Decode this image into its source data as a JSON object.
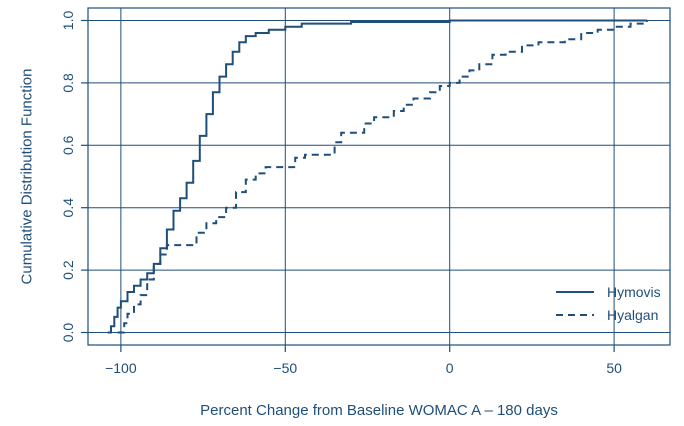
{
  "chart_data": {
    "type": "line",
    "title": "",
    "xlabel": "Percent Change from Baseline WOMAC A – 180 days",
    "ylabel": "Cumulative Distribution Function",
    "xlim": [
      -110,
      67
    ],
    "ylim": [
      -0.04,
      1.04
    ],
    "x_ticks": [
      -100,
      -50,
      0,
      50
    ],
    "x_tick_labels": [
      "−100",
      "−50",
      "0",
      "50"
    ],
    "y_ticks": [
      0.0,
      0.2,
      0.4,
      0.6,
      0.8,
      1.0
    ],
    "y_tick_labels": [
      "0.0",
      "0.2",
      "0.4",
      "0.6",
      "0.8",
      "1.0"
    ],
    "grid": true,
    "legend_position": "bottom-right",
    "colors": {
      "line": "#1f4e79",
      "grid": "#1f4e79",
      "background": "#ffffff"
    },
    "series": [
      {
        "name": "Hymovis",
        "style": "solid",
        "points": [
          [
            -104,
            0.0
          ],
          [
            -103,
            0.02
          ],
          [
            -102,
            0.05
          ],
          [
            -101,
            0.08
          ],
          [
            -100,
            0.1
          ],
          [
            -98,
            0.13
          ],
          [
            -96,
            0.15
          ],
          [
            -94,
            0.17
          ],
          [
            -92,
            0.19
          ],
          [
            -90,
            0.22
          ],
          [
            -88,
            0.27
          ],
          [
            -86,
            0.33
          ],
          [
            -84,
            0.39
          ],
          [
            -82,
            0.43
          ],
          [
            -80,
            0.48
          ],
          [
            -78,
            0.55
          ],
          [
            -76,
            0.63
          ],
          [
            -74,
            0.7
          ],
          [
            -72,
            0.77
          ],
          [
            -70,
            0.82
          ],
          [
            -68,
            0.86
          ],
          [
            -66,
            0.9
          ],
          [
            -64,
            0.93
          ],
          [
            -62,
            0.95
          ],
          [
            -59,
            0.96
          ],
          [
            -55,
            0.97
          ],
          [
            -50,
            0.98
          ],
          [
            -45,
            0.99
          ],
          [
            -30,
            0.995
          ],
          [
            0,
            1.0
          ],
          [
            60,
            1.0
          ]
        ]
      },
      {
        "name": "Hyalgan",
        "style": "dashed",
        "points": [
          [
            -101,
            0.0
          ],
          [
            -99,
            0.03
          ],
          [
            -98,
            0.06
          ],
          [
            -96,
            0.09
          ],
          [
            -94,
            0.12
          ],
          [
            -92,
            0.17
          ],
          [
            -90,
            0.22
          ],
          [
            -88,
            0.25
          ],
          [
            -86,
            0.28
          ],
          [
            -84,
            0.28
          ],
          [
            -80,
            0.28
          ],
          [
            -77,
            0.32
          ],
          [
            -74,
            0.35
          ],
          [
            -71,
            0.37
          ],
          [
            -68,
            0.4
          ],
          [
            -65,
            0.45
          ],
          [
            -62,
            0.49
          ],
          [
            -59,
            0.51
          ],
          [
            -56,
            0.53
          ],
          [
            -50,
            0.53
          ],
          [
            -47,
            0.56
          ],
          [
            -44,
            0.57
          ],
          [
            -38,
            0.57
          ],
          [
            -35,
            0.61
          ],
          [
            -33,
            0.64
          ],
          [
            -29,
            0.64
          ],
          [
            -26,
            0.67
          ],
          [
            -23,
            0.69
          ],
          [
            -17,
            0.71
          ],
          [
            -14,
            0.73
          ],
          [
            -11,
            0.75
          ],
          [
            -6,
            0.77
          ],
          [
            -3,
            0.79
          ],
          [
            0,
            0.8
          ],
          [
            3,
            0.82
          ],
          [
            6,
            0.84
          ],
          [
            9,
            0.86
          ],
          [
            13,
            0.89
          ],
          [
            17,
            0.9
          ],
          [
            22,
            0.92
          ],
          [
            27,
            0.93
          ],
          [
            35,
            0.94
          ],
          [
            40,
            0.96
          ],
          [
            45,
            0.97
          ],
          [
            50,
            0.98
          ],
          [
            55,
            0.99
          ],
          [
            60,
            1.0
          ]
        ]
      }
    ]
  }
}
